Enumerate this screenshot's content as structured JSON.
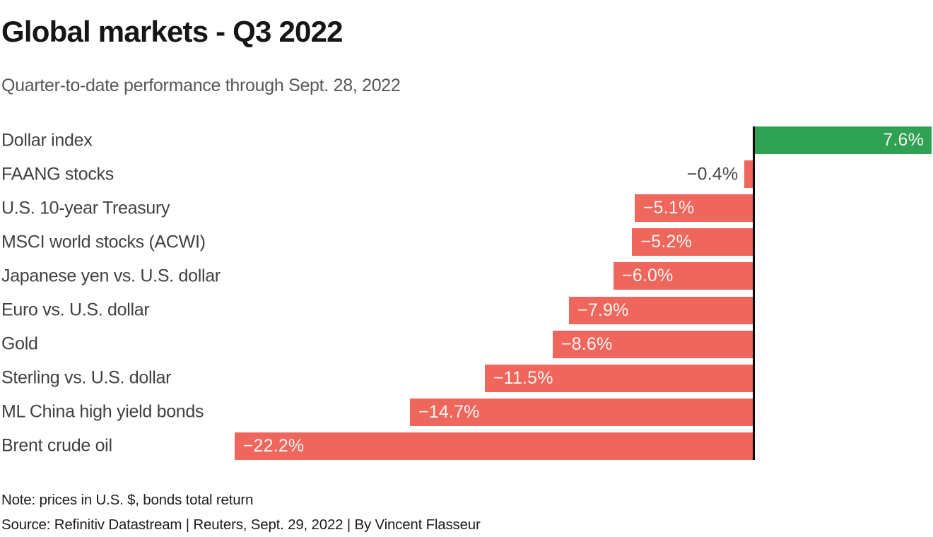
{
  "header": {
    "title": "Global markets - Q3 2022",
    "subtitle": "Quarter-to-date performance through Sept. 28, 2022"
  },
  "chart_data": {
    "type": "bar",
    "orientation": "horizontal",
    "title": "Global markets - Q3 2022",
    "subtitle": "Quarter-to-date performance through Sept. 28, 2022",
    "xlabel": "",
    "ylabel": "",
    "unit": "%",
    "categories": [
      "Dollar index",
      "FAANG stocks",
      "U.S. 10-year Treasury",
      "MSCI world stocks (ACWI)",
      "Japanese yen vs. U.S. dollar",
      "Euro vs. U.S. dollar",
      "Gold",
      "Sterling vs. U.S. dollar",
      "ML China high yield bonds",
      "Brent crude oil"
    ],
    "values": [
      7.6,
      -0.4,
      -5.1,
      -5.2,
      -6.0,
      -7.9,
      -8.6,
      -11.5,
      -14.7,
      -22.2
    ],
    "value_labels": [
      "7.6%",
      "−0.4%",
      "−5.1%",
      "−5.2%",
      "−6.0%",
      "−7.9%",
      "−8.6%",
      "−11.5%",
      "−14.7%",
      "−22.2%"
    ],
    "xlim": [
      -32.2,
      7.7
    ],
    "grid": false,
    "legend": null,
    "zero_baseline": true,
    "colors": {
      "positive": "#2fa152",
      "negative": "#ee665c",
      "baseline": "#0a0a0a",
      "title": "#161616",
      "subtitle": "#575757",
      "category_label": "#414141",
      "value_inside": "#f7f5f3",
      "value_outside": "#474747"
    }
  },
  "footer": {
    "note": "Note: prices in U.S. $, bonds total return",
    "source": "Source: Refinitiv Datastream | Reuters, Sept. 29, 2022 | By Vincent Flasseur"
  }
}
